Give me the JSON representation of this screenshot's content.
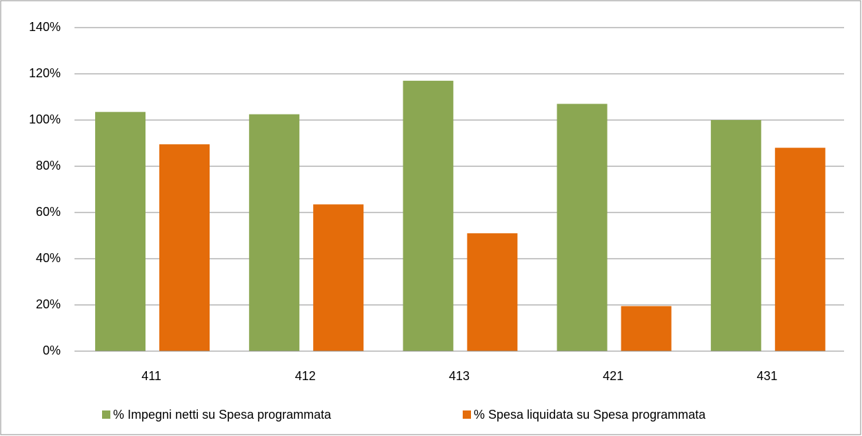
{
  "chart_data": {
    "type": "bar",
    "categories": [
      "411",
      "412",
      "413",
      "421",
      "431"
    ],
    "series": [
      {
        "name": "% Impegni netti su Spesa programmata",
        "color": "#8ba752",
        "values": [
          103.5,
          102.5,
          117,
          107,
          100
        ]
      },
      {
        "name": "% Spesa liquidata su Spesa programmata",
        "color": "#e46c0a",
        "values": [
          89.5,
          63.5,
          51,
          19.5,
          88
        ]
      }
    ],
    "ylim": [
      0,
      140
    ],
    "yticks": [
      {
        "value": 0,
        "label": "0%"
      },
      {
        "value": 20,
        "label": "20%"
      },
      {
        "value": 40,
        "label": "40%"
      },
      {
        "value": 60,
        "label": "60%"
      },
      {
        "value": 80,
        "label": "80%"
      },
      {
        "value": 100,
        "label": "100%"
      },
      {
        "value": 120,
        "label": "120%"
      },
      {
        "value": 140,
        "label": "140%"
      }
    ],
    "grid": true,
    "legend": "bottom"
  }
}
